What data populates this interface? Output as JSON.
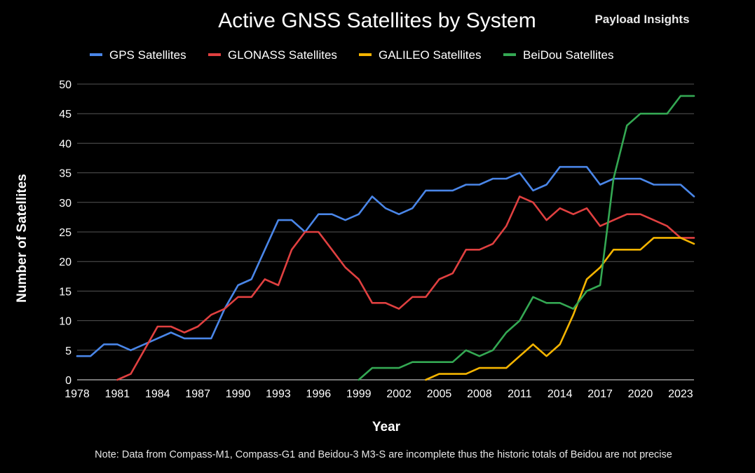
{
  "header": {
    "title": "Active GNSS Satellites by System",
    "brand": "Payload Insights"
  },
  "footer": {
    "note": "Note: Data from Compass-M1, Compass-G1 and Beidou-3 M3-S are incomplete thus the historic totals of Beidou are not precise"
  },
  "chart_data": {
    "type": "line",
    "title": "Active GNSS Satellites by System",
    "xlabel": "Year",
    "ylabel": "Number of Satellites",
    "xlim": [
      1978,
      2024
    ],
    "ylim": [
      0,
      50
    ],
    "x_ticks": [
      1978,
      1981,
      1984,
      1987,
      1990,
      1993,
      1996,
      1999,
      2002,
      2005,
      2008,
      2011,
      2014,
      2017,
      2020,
      2023
    ],
    "y_ticks": [
      0,
      5,
      10,
      15,
      20,
      25,
      30,
      35,
      40,
      45,
      50
    ],
    "grid": true,
    "legend_position": "top",
    "series": [
      {
        "name": "GPS Satellites",
        "color": "#4a86e8",
        "x": [
          1978,
          1979,
          1980,
          1981,
          1982,
          1983,
          1984,
          1985,
          1986,
          1987,
          1988,
          1989,
          1990,
          1991,
          1992,
          1993,
          1994,
          1995,
          1996,
          1997,
          1998,
          1999,
          2000,
          2001,
          2002,
          2003,
          2004,
          2005,
          2006,
          2007,
          2008,
          2009,
          2010,
          2011,
          2012,
          2013,
          2014,
          2015,
          2016,
          2017,
          2018,
          2019,
          2020,
          2021,
          2022,
          2023,
          2024
        ],
        "y": [
          4,
          4,
          6,
          6,
          5,
          6,
          7,
          8,
          7,
          7,
          7,
          12,
          16,
          17,
          22,
          27,
          27,
          25,
          28,
          28,
          27,
          28,
          31,
          29,
          28,
          29,
          32,
          32,
          32,
          33,
          33,
          34,
          34,
          35,
          32,
          33,
          36,
          36,
          36,
          33,
          34,
          34,
          34,
          33,
          33,
          33,
          31
        ]
      },
      {
        "name": "GLONASS Satellites",
        "color": "#e04040",
        "x": [
          1981,
          1982,
          1983,
          1984,
          1985,
          1986,
          1987,
          1988,
          1989,
          1990,
          1991,
          1992,
          1993,
          1994,
          1995,
          1996,
          1997,
          1998,
          1999,
          2000,
          2001,
          2002,
          2003,
          2004,
          2005,
          2006,
          2007,
          2008,
          2009,
          2010,
          2011,
          2012,
          2013,
          2014,
          2015,
          2016,
          2017,
          2018,
          2019,
          2020,
          2021,
          2022,
          2023,
          2024
        ],
        "y": [
          0,
          1,
          5,
          9,
          9,
          8,
          9,
          11,
          12,
          14,
          14,
          17,
          16,
          22,
          25,
          25,
          22,
          19,
          17,
          13,
          13,
          12,
          14,
          14,
          17,
          18,
          22,
          22,
          23,
          26,
          31,
          30,
          27,
          29,
          28,
          29,
          26,
          27,
          28,
          28,
          27,
          26,
          24,
          24
        ]
      },
      {
        "name": "GALILEO Satellites",
        "color": "#f4b400",
        "x": [
          2004,
          2005,
          2006,
          2007,
          2008,
          2009,
          2010,
          2011,
          2012,
          2013,
          2014,
          2015,
          2016,
          2017,
          2018,
          2019,
          2020,
          2021,
          2022,
          2023,
          2024
        ],
        "y": [
          0,
          1,
          1,
          1,
          2,
          2,
          2,
          4,
          6,
          4,
          6,
          11,
          17,
          19,
          22,
          22,
          22,
          24,
          24,
          24,
          23
        ]
      },
      {
        "name": "BeiDou Satellites",
        "color": "#34a853",
        "x": [
          1999,
          2000,
          2001,
          2002,
          2003,
          2004,
          2005,
          2006,
          2007,
          2008,
          2009,
          2010,
          2011,
          2012,
          2013,
          2014,
          2015,
          2016,
          2017,
          2018,
          2019,
          2020,
          2021,
          2022,
          2023,
          2024
        ],
        "y": [
          0,
          2,
          2,
          2,
          3,
          3,
          3,
          3,
          5,
          4,
          5,
          8,
          10,
          14,
          13,
          13,
          12,
          15,
          16,
          34,
          43,
          45,
          45,
          45,
          48,
          48
        ]
      }
    ]
  }
}
